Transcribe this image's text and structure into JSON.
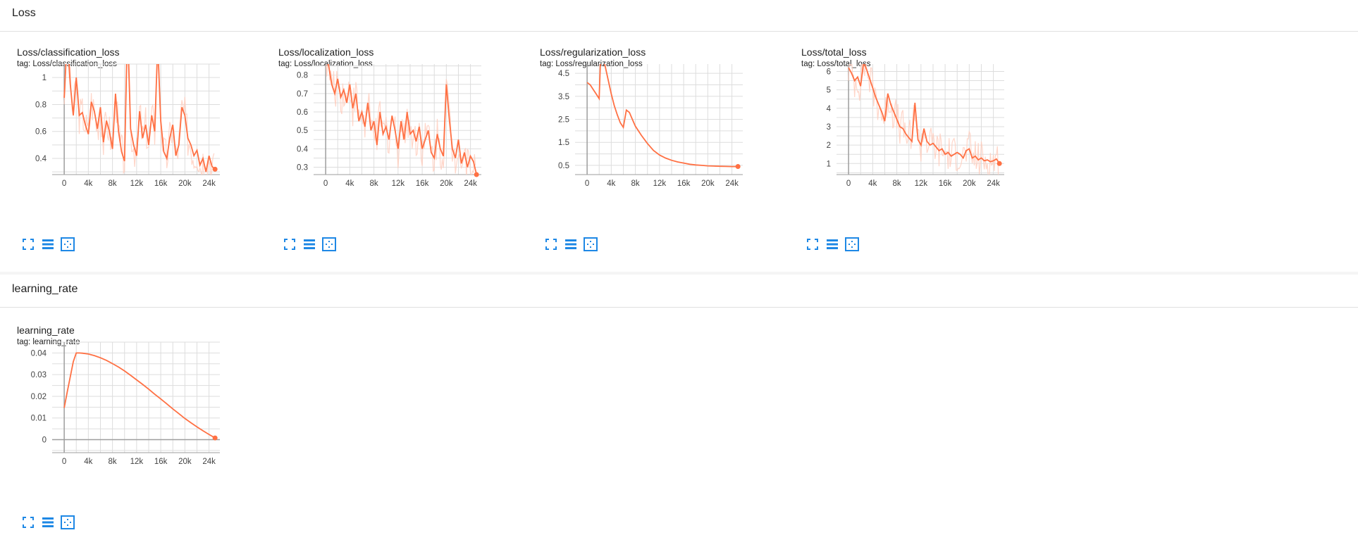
{
  "sections": [
    {
      "title": "Loss"
    },
    {
      "title": "learning_rate"
    }
  ],
  "colors": {
    "line": "#ff7043",
    "line_faint": "#ffccbc",
    "grid": "#dddddd",
    "axis": "#9e9e9e",
    "icon": "#1e88e5"
  },
  "toolbar_icons": [
    "fullscreen-icon",
    "list-icon",
    "fit-domain-icon"
  ],
  "chart_data": [
    {
      "type": "line",
      "title": "Loss/classification_loss",
      "tag": "tag: Loss/classification_loss",
      "xlim": [
        -2000,
        25800
      ],
      "ylim": [
        0.28,
        1.1
      ],
      "xticks": [
        0,
        4000,
        8000,
        12000,
        16000,
        20000,
        24000
      ],
      "xtick_labels": [
        "0",
        "4k",
        "8k",
        "12k",
        "16k",
        "20k",
        "24k"
      ],
      "yticks": [
        0.4,
        0.6,
        0.8,
        1.0
      ],
      "ytick_labels": [
        "0.4",
        "0.6",
        "0.8",
        "1"
      ],
      "series": [
        {
          "x": [
            0,
            500,
            1000,
            1500,
            2000,
            2500,
            3000,
            3500,
            4000,
            4500,
            5000,
            5500,
            6000,
            6500,
            7000,
            7500,
            8000,
            8500,
            9000,
            9500,
            10000,
            10500,
            11000,
            11500,
            12000,
            12500,
            13000,
            13500,
            14000,
            14500,
            15000,
            15500,
            16000,
            16500,
            17000,
            17500,
            18000,
            18500,
            19000,
            19500,
            20000,
            20500,
            21000,
            21500,
            22000,
            22500,
            23000,
            23500,
            24000,
            24500,
            25000
          ],
          "y": [
            0.85,
            1.3,
            0.95,
            0.72,
            1.0,
            0.72,
            0.74,
            0.65,
            0.58,
            0.82,
            0.75,
            0.62,
            0.78,
            0.52,
            0.68,
            0.6,
            0.47,
            0.88,
            0.6,
            0.45,
            0.38,
            1.4,
            0.62,
            0.5,
            0.42,
            0.75,
            0.55,
            0.65,
            0.5,
            0.72,
            0.6,
            1.25,
            0.68,
            0.45,
            0.4,
            0.55,
            0.65,
            0.42,
            0.5,
            0.78,
            0.72,
            0.55,
            0.5,
            0.42,
            0.46,
            0.35,
            0.4,
            0.3,
            0.42,
            0.34,
            0.32
          ]
        }
      ]
    },
    {
      "type": "line",
      "title": "Loss/localization_loss",
      "tag": "tag: Loss/localization_loss",
      "xlim": [
        -2000,
        25800
      ],
      "ylim": [
        0.26,
        0.86
      ],
      "xticks": [
        0,
        4000,
        8000,
        12000,
        16000,
        20000,
        24000
      ],
      "xtick_labels": [
        "0",
        "4k",
        "8k",
        "12k",
        "16k",
        "20k",
        "24k"
      ],
      "yticks": [
        0.3,
        0.4,
        0.5,
        0.6,
        0.7,
        0.8
      ],
      "ytick_labels": [
        "0.3",
        "0.4",
        "0.5",
        "0.6",
        "0.7",
        "0.8"
      ],
      "series": [
        {
          "x": [
            0,
            500,
            1000,
            1500,
            2000,
            2500,
            3000,
            3500,
            4000,
            4500,
            5000,
            5500,
            6000,
            6500,
            7000,
            7500,
            8000,
            8500,
            9000,
            9500,
            10000,
            10500,
            11000,
            11500,
            12000,
            12500,
            13000,
            13500,
            14000,
            14500,
            15000,
            15500,
            16000,
            16500,
            17000,
            17500,
            18000,
            18500,
            19000,
            19500,
            20000,
            20500,
            21000,
            21500,
            22000,
            22500,
            23000,
            23500,
            24000,
            24500,
            25000
          ],
          "y": [
            0.9,
            0.85,
            0.75,
            0.7,
            0.78,
            0.68,
            0.72,
            0.65,
            0.75,
            0.62,
            0.7,
            0.55,
            0.6,
            0.52,
            0.65,
            0.5,
            0.55,
            0.42,
            0.6,
            0.48,
            0.52,
            0.45,
            0.58,
            0.5,
            0.4,
            0.55,
            0.45,
            0.6,
            0.48,
            0.5,
            0.44,
            0.52,
            0.4,
            0.45,
            0.5,
            0.38,
            0.35,
            0.48,
            0.4,
            0.36,
            0.75,
            0.56,
            0.4,
            0.35,
            0.45,
            0.32,
            0.38,
            0.3,
            0.36,
            0.33,
            0.26
          ]
        }
      ]
    },
    {
      "type": "line",
      "title": "Loss/regularization_loss",
      "tag": "tag: Loss/regularization_loss",
      "xlim": [
        -2000,
        25800
      ],
      "ylim": [
        0.1,
        4.9
      ],
      "xticks": [
        0,
        4000,
        8000,
        12000,
        16000,
        20000,
        24000
      ],
      "xtick_labels": [
        "0",
        "4k",
        "8k",
        "12k",
        "16k",
        "20k",
        "24k"
      ],
      "yticks": [
        0.5,
        1.5,
        2.5,
        3.5,
        4.5
      ],
      "ytick_labels": [
        "0.5",
        "1.5",
        "2.5",
        "3.5",
        "4.5"
      ],
      "series": [
        {
          "x": [
            0,
            500,
            1000,
            1500,
            2000,
            2200,
            2500,
            3000,
            3500,
            4000,
            4500,
            5000,
            5500,
            6000,
            6500,
            7000,
            7500,
            8000,
            9000,
            10000,
            11000,
            12000,
            13000,
            14000,
            15000,
            16000,
            17000,
            18000,
            19000,
            20000,
            21000,
            22000,
            23000,
            24000,
            25000
          ],
          "y": [
            4.1,
            4.0,
            3.8,
            3.6,
            3.4,
            5.0,
            5.3,
            4.8,
            4.2,
            3.6,
            3.1,
            2.7,
            2.35,
            2.15,
            2.9,
            2.8,
            2.5,
            2.2,
            1.8,
            1.45,
            1.15,
            0.95,
            0.82,
            0.72,
            0.65,
            0.6,
            0.55,
            0.52,
            0.5,
            0.48,
            0.47,
            0.46,
            0.455,
            0.45,
            0.45
          ]
        }
      ]
    },
    {
      "type": "line",
      "title": "Loss/total_loss",
      "tag": "tag: Loss/total_loss",
      "xlim": [
        -2000,
        25800
      ],
      "ylim": [
        0.4,
        6.4
      ],
      "xticks": [
        0,
        4000,
        8000,
        12000,
        16000,
        20000,
        24000
      ],
      "xtick_labels": [
        "0",
        "4k",
        "8k",
        "12k",
        "16k",
        "20k",
        "24k"
      ],
      "yticks": [
        1,
        2,
        3,
        4,
        5,
        6
      ],
      "ytick_labels": [
        "1",
        "2",
        "3",
        "4",
        "5",
        "6"
      ],
      "series": [
        {
          "x": [
            0,
            500,
            1000,
            1500,
            2000,
            2500,
            3000,
            3500,
            4000,
            4500,
            5000,
            5500,
            6000,
            6500,
            7000,
            7500,
            8000,
            8500,
            9000,
            9500,
            10000,
            10500,
            11000,
            11500,
            12000,
            12500,
            13000,
            13500,
            14000,
            14500,
            15000,
            15500,
            16000,
            16500,
            17000,
            17500,
            18000,
            18500,
            19000,
            19500,
            20000,
            20500,
            21000,
            21500,
            22000,
            22500,
            23000,
            23500,
            24000,
            24500,
            25000
          ],
          "y": [
            6.2,
            5.9,
            5.5,
            5.7,
            5.2,
            6.5,
            6.1,
            5.6,
            5.1,
            4.6,
            4.2,
            3.8,
            3.3,
            4.8,
            4.2,
            3.8,
            3.4,
            3.0,
            2.9,
            2.6,
            2.4,
            2.2,
            4.3,
            2.3,
            2.0,
            2.9,
            2.2,
            2.0,
            2.1,
            1.9,
            1.7,
            1.8,
            1.5,
            1.6,
            1.4,
            1.5,
            1.6,
            1.5,
            1.3,
            1.7,
            1.8,
            1.3,
            1.4,
            1.2,
            1.3,
            1.15,
            1.2,
            1.1,
            1.15,
            1.25,
            1.0
          ]
        }
      ]
    },
    {
      "type": "line",
      "title": "learning_rate",
      "tag": "tag: learning_rate",
      "xlim": [
        -2000,
        25800
      ],
      "ylim": [
        -0.006,
        0.045
      ],
      "xticks": [
        0,
        4000,
        8000,
        12000,
        16000,
        20000,
        24000
      ],
      "xtick_labels": [
        "0",
        "4k",
        "8k",
        "12k",
        "16k",
        "20k",
        "24k"
      ],
      "yticks": [
        0,
        0.01,
        0.02,
        0.03,
        0.04
      ],
      "ytick_labels": [
        "0",
        "0.01",
        "0.02",
        "0.03",
        "0.04"
      ],
      "series": [
        {
          "x": [
            0,
            500,
            1000,
            1500,
            2000,
            2500,
            3000,
            4000,
            5000,
            6000,
            7000,
            8000,
            9000,
            10000,
            11000,
            12000,
            13000,
            14000,
            15000,
            16000,
            17000,
            18000,
            19000,
            20000,
            21000,
            22000,
            23000,
            24000,
            25000
          ],
          "y": [
            0.0147,
            0.022,
            0.029,
            0.036,
            0.04,
            0.04,
            0.0399,
            0.0395,
            0.0388,
            0.0378,
            0.0366,
            0.0351,
            0.0335,
            0.0317,
            0.0297,
            0.0276,
            0.0255,
            0.0233,
            0.021,
            0.0188,
            0.0165,
            0.0142,
            0.012,
            0.0098,
            0.0078,
            0.0059,
            0.0041,
            0.0024,
            0.0008
          ]
        }
      ]
    }
  ]
}
